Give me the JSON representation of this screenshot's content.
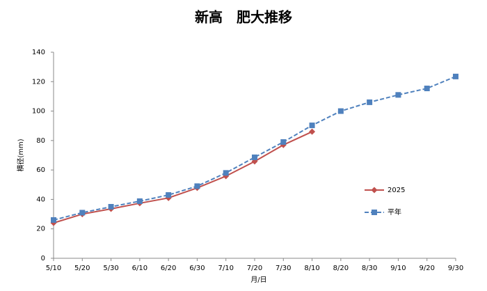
{
  "chart_data": {
    "type": "line",
    "title": "新高　肥大推移",
    "x_label": "月/日",
    "y_label": "横径(mm)",
    "categories": [
      "5/10",
      "5/20",
      "5/30",
      "6/10",
      "6/20",
      "6/30",
      "7/10",
      "7/20",
      "7/30",
      "8/10",
      "8/20",
      "8/30",
      "9/10",
      "9/20",
      "9/30"
    ],
    "series": [
      {
        "name": "2025",
        "color": "#c0504d",
        "marker": "diamond",
        "dash": false,
        "values": [
          24,
          30,
          33.6,
          37.4,
          41,
          47.8,
          55.8,
          65.8,
          77,
          86,
          null,
          null,
          null,
          null,
          null
        ]
      },
      {
        "name": "平年",
        "color": "#4f81bd",
        "marker": "square",
        "dash": true,
        "values": [
          26,
          31,
          35,
          38.8,
          43,
          49,
          58,
          68.6,
          79,
          90.3,
          100,
          106,
          111,
          115.4,
          123.5
        ]
      }
    ],
    "ylim": [
      0,
      140
    ],
    "yticks": [
      0,
      20,
      40,
      60,
      80,
      100,
      120,
      140
    ],
    "grid": false
  }
}
